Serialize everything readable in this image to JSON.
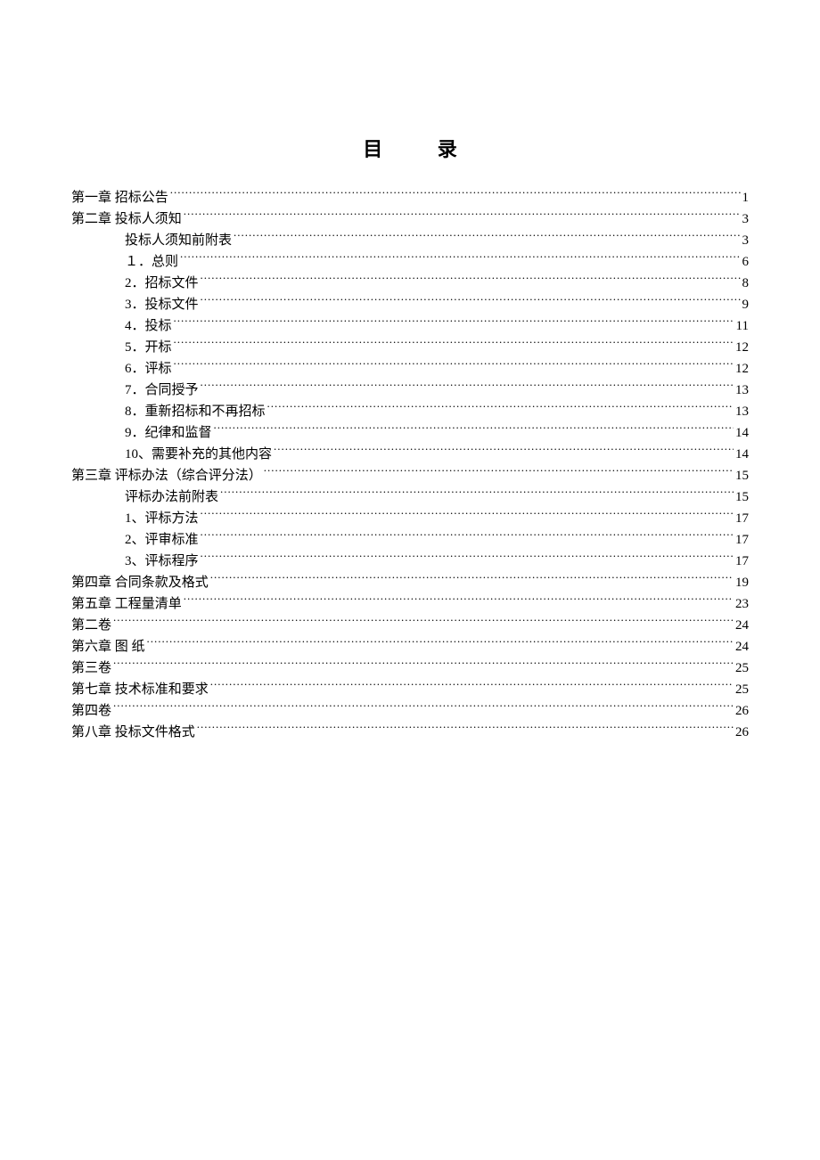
{
  "title": "目  录",
  "title_fontsize": 22,
  "text_color": "#000000",
  "background_color": "#ffffff",
  "entry_fontsize": 15,
  "entries": [
    {
      "level": 1,
      "label": "第一章 招标公告",
      "page": "1"
    },
    {
      "level": 1,
      "label": "第二章 投标人须知",
      "page": "3"
    },
    {
      "level": 2,
      "label": "投标人须知前附表",
      "page": "3"
    },
    {
      "level": 2,
      "label": "１．总则",
      "page": "6"
    },
    {
      "level": 2,
      "label": "2．招标文件",
      "page": "8"
    },
    {
      "level": 2,
      "label": "3．投标文件",
      "page": "9"
    },
    {
      "level": 2,
      "label": "4．投标",
      "page": "11"
    },
    {
      "level": 2,
      "label": "5．开标",
      "page": "12"
    },
    {
      "level": 2,
      "label": "6．评标",
      "page": "12"
    },
    {
      "level": 2,
      "label": "7．合同授予",
      "page": "13"
    },
    {
      "level": 2,
      "label": "8．重新招标和不再招标",
      "page": "13"
    },
    {
      "level": 2,
      "label": "9．纪律和监督",
      "page": "14"
    },
    {
      "level": 2,
      "label": "10、需要补充的其他内容",
      "page": "14"
    },
    {
      "level": 1,
      "label": "第三章 评标办法（综合评分法）",
      "page": "15"
    },
    {
      "level": 2,
      "label": "评标办法前附表",
      "page": "15"
    },
    {
      "level": 2,
      "label": "1、评标方法",
      "page": "17"
    },
    {
      "level": 2,
      "label": "2、评审标准",
      "page": "17"
    },
    {
      "level": 2,
      "label": "3、评标程序",
      "page": "17"
    },
    {
      "level": 1,
      "label": "第四章 合同条款及格式",
      "page": "19"
    },
    {
      "level": 1,
      "label": "第五章 工程量清单",
      "page": "23"
    },
    {
      "level": 1,
      "label": "第二卷",
      "page": "24"
    },
    {
      "level": 1,
      "label": "第六章   图 纸",
      "page": "24"
    },
    {
      "level": 1,
      "label": "第三卷",
      "page": "25"
    },
    {
      "level": 1,
      "label": "第七章 技术标准和要求",
      "page": "25"
    },
    {
      "level": 1,
      "label": "第四卷",
      "page": "26"
    },
    {
      "level": 1,
      "label": "第八章 投标文件格式",
      "page": "26"
    }
  ]
}
